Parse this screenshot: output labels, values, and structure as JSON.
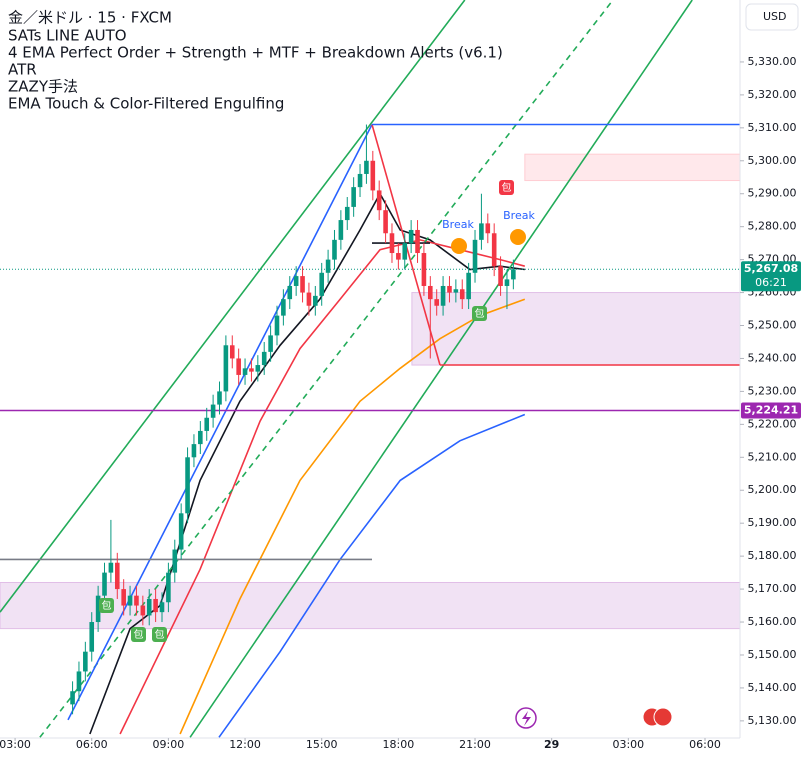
{
  "chart_data": {
    "type": "candlestick",
    "title": "金／米ドル · 15 · FXCM",
    "indicators": [
      "SATs LINE AUTO",
      "4 EMA Perfect Order + Strength + MTF + Breakdown Alerts (v6.1)",
      "ATR",
      "ZAZY手法",
      "EMA Touch & Color-Filtered Engulfing"
    ],
    "currency": "USD",
    "countdown": "06:21",
    "annotations": {
      "break": "Break",
      "engulf": "包"
    },
    "up_color": "#089981",
    "down_color": "#f23645",
    "xlim": [
      2.41,
      31.37
    ],
    "xticks": [
      {
        "value": 3,
        "label": "03:00"
      },
      {
        "value": 6,
        "label": "06:00"
      },
      {
        "value": 9,
        "label": "09:00"
      },
      {
        "value": 12,
        "label": "12:00"
      },
      {
        "value": 15,
        "label": "15:00"
      },
      {
        "value": 18,
        "label": "18:00"
      },
      {
        "value": 21,
        "label": "21:00"
      },
      {
        "value": 24,
        "label": "29"
      },
      {
        "value": 27,
        "label": "03:00"
      },
      {
        "value": 30,
        "label": "06:00"
      }
    ],
    "ylim": [
      5124.8,
      5348.8
    ],
    "yticks": [
      {
        "value": 5130,
        "label": "5,130.00"
      },
      {
        "value": 5140,
        "label": "5,140.00"
      },
      {
        "value": 5150,
        "label": "5,150.00"
      },
      {
        "value": 5160,
        "label": "5,160.00"
      },
      {
        "value": 5170,
        "label": "5,170.00"
      },
      {
        "value": 5180,
        "label": "5,180.00"
      },
      {
        "value": 5190,
        "label": "5,190.00"
      },
      {
        "value": 5200,
        "label": "5,200.00"
      },
      {
        "value": 5210,
        "label": "5,210.00"
      },
      {
        "value": 5220,
        "label": "5,220.00"
      },
      {
        "value": 5230,
        "label": "5,230.00"
      },
      {
        "value": 5240,
        "label": "5,240.00"
      },
      {
        "value": 5250,
        "label": "5,250.00"
      },
      {
        "value": 5260,
        "label": "5,260.00"
      },
      {
        "value": 5270,
        "label": "5,270.00"
      },
      {
        "value": 5280,
        "label": "5,280.00"
      },
      {
        "value": 5290,
        "label": "5,290.00"
      },
      {
        "value": 5300,
        "label": "5,300.00"
      },
      {
        "value": 5310,
        "label": "5,310.00"
      },
      {
        "value": 5320,
        "label": "5,320.00"
      },
      {
        "value": 5330,
        "label": "5,330.00"
      }
    ],
    "x": [
      5.25,
      5.5,
      5.75,
      6,
      6.25,
      6.5,
      6.75,
      7,
      7.25,
      7.5,
      7.75,
      8,
      8.25,
      8.5,
      8.75,
      9,
      9.25,
      9.5,
      9.75,
      10,
      10.25,
      10.5,
      10.75,
      11,
      11.25,
      11.5,
      11.75,
      12,
      12.25,
      12.5,
      12.75,
      13,
      13.25,
      13.5,
      13.75,
      14,
      14.25,
      14.5,
      14.75,
      15,
      15.25,
      15.5,
      15.75,
      16,
      16.25,
      16.5,
      16.75,
      17,
      17.25,
      17.5,
      17.75,
      18,
      18.25,
      18.5,
      18.75,
      19,
      19.25,
      19.5,
      19.75,
      20,
      20.25,
      20.5,
      20.75,
      21,
      21.25,
      21.5,
      21.75,
      22,
      22.25,
      22.5
    ],
    "candles": [
      [
        5135,
        5142,
        5132,
        5139
      ],
      [
        5139,
        5148,
        5136,
        5145
      ],
      [
        5145,
        5154,
        5142,
        5151
      ],
      [
        5151,
        5163,
        5148,
        5160
      ],
      [
        5160,
        5171,
        5157,
        5168
      ],
      [
        5168,
        5178,
        5165,
        5175
      ],
      [
        5175,
        5191,
        5172,
        5178
      ],
      [
        5178,
        5181,
        5167,
        5170
      ],
      [
        5170,
        5173,
        5162,
        5165
      ],
      [
        5165,
        5171,
        5162,
        5168
      ],
      [
        5168,
        5171,
        5162,
        5165
      ],
      [
        5165,
        5168,
        5159,
        5162
      ],
      [
        5162,
        5170,
        5159,
        5167
      ],
      [
        5167,
        5170,
        5160,
        5163
      ],
      [
        5163,
        5169,
        5160,
        5166
      ],
      [
        5166,
        5178,
        5163,
        5175
      ],
      [
        5175,
        5185,
        5172,
        5182
      ],
      [
        5182,
        5196,
        5179,
        5193
      ],
      [
        5193,
        5213,
        5190,
        5210
      ],
      [
        5210,
        5217,
        5207,
        5214
      ],
      [
        5214,
        5221,
        5211,
        5218
      ],
      [
        5218,
        5225,
        5215,
        5222
      ],
      [
        5222,
        5229,
        5219,
        5226
      ],
      [
        5226,
        5233,
        5223,
        5230
      ],
      [
        5230,
        5247,
        5227,
        5244
      ],
      [
        5244,
        5247,
        5237,
        5240
      ],
      [
        5240,
        5243,
        5232,
        5235
      ],
      [
        5235,
        5240,
        5232,
        5237
      ],
      [
        5237,
        5240,
        5233,
        5236
      ],
      [
        5236,
        5241,
        5233,
        5238
      ],
      [
        5238,
        5245,
        5235,
        5242
      ],
      [
        5242,
        5250,
        5239,
        5247
      ],
      [
        5247,
        5256,
        5244,
        5253
      ],
      [
        5253,
        5261,
        5250,
        5258
      ],
      [
        5258,
        5265,
        5255,
        5262
      ],
      [
        5262,
        5268,
        5259,
        5265
      ],
      [
        5265,
        5268,
        5257,
        5260
      ],
      [
        5260,
        5263,
        5253,
        5256
      ],
      [
        5256,
        5262,
        5253,
        5259
      ],
      [
        5259,
        5269,
        5256,
        5266
      ],
      [
        5266,
        5273,
        5263,
        5270
      ],
      [
        5270,
        5279,
        5267,
        5276
      ],
      [
        5276,
        5285,
        5273,
        5282
      ],
      [
        5282,
        5289,
        5279,
        5286
      ],
      [
        5286,
        5295,
        5283,
        5292
      ],
      [
        5292,
        5299,
        5289,
        5296
      ],
      [
        5296,
        5311,
        5293,
        5300
      ],
      [
        5300,
        5303,
        5288,
        5291
      ],
      [
        5291,
        5294,
        5282,
        5285
      ],
      [
        5285,
        5288,
        5275,
        5278
      ],
      [
        5278,
        5281,
        5269,
        5272
      ],
      [
        5272,
        5275,
        5267,
        5270
      ],
      [
        5270,
        5278,
        5267,
        5275
      ],
      [
        5275,
        5282,
        5272,
        5279
      ],
      [
        5279,
        5282,
        5269,
        5272
      ],
      [
        5272,
        5275,
        5259,
        5262
      ],
      [
        5262,
        5265,
        5240,
        5258
      ],
      [
        5258,
        5261,
        5253,
        5256
      ],
      [
        5256,
        5265,
        5253,
        5262
      ],
      [
        5262,
        5265,
        5257,
        5260
      ],
      [
        5260,
        5264,
        5257,
        5261
      ],
      [
        5261,
        5264,
        5255,
        5258
      ],
      [
        5258,
        5269,
        5255,
        5266
      ],
      [
        5266,
        5279,
        5263,
        5276
      ],
      [
        5276,
        5290,
        5273,
        5281
      ],
      [
        5281,
        5284,
        5275,
        5278
      ],
      [
        5278,
        5281,
        5265,
        5268
      ],
      [
        5268,
        5271,
        5259,
        5262
      ],
      [
        5262,
        5267,
        5255,
        5264
      ],
      [
        5264,
        5270,
        5261,
        5267.08
      ]
    ],
    "zones": [
      {
        "color": "#e1bee7",
        "x": [
          2.41,
          31.37
        ],
        "range": [
          5158,
          5172
        ]
      },
      {
        "color": "#e1bee7",
        "x": [
          18.53,
          31.37
        ],
        "range": [
          5238,
          5260
        ]
      },
      {
        "color": "#ffcdd2",
        "x": [
          22.95,
          31.37
        ],
        "range": [
          5294,
          5302
        ]
      }
    ],
    "overlays": [
      {
        "color": "#131722",
        "x": [
          5.93,
          7.5,
          8.67,
          10.24,
          11.8,
          13.37,
          14.93,
          16.5,
          17.28,
          18.07,
          19.24,
          20.8,
          21.98,
          22.95
        ],
        "values": [
          5126,
          5158,
          5165,
          5203,
          5227,
          5244,
          5258,
          5279,
          5290,
          5279,
          5276,
          5267,
          5268,
          5267
        ]
      },
      {
        "color": "#f23645",
        "x": [
          7.11,
          10.24,
          12.59,
          14.15,
          15.72,
          17.28,
          18.85,
          20.41,
          21.98,
          22.95
        ],
        "values": [
          5126,
          5176,
          5221,
          5243,
          5258,
          5273,
          5276,
          5273,
          5270,
          5268
        ]
      },
      {
        "color": "#ff9800",
        "x": [
          9.46,
          11.8,
          14.15,
          16.5,
          18.07,
          19.63,
          21.2,
          22.95
        ],
        "values": [
          5126,
          5167,
          5203,
          5227,
          5237,
          5246,
          5253,
          5258
        ]
      },
      {
        "color": "#2962ff",
        "x": [
          10.98,
          13.37,
          15.72,
          18.07,
          20.41,
          22.95
        ],
        "values": [
          5125,
          5151,
          5179,
          5203,
          5215,
          5223
        ]
      },
      {
        "color": "#22ab59",
        "x": [
          2.41,
          20.6
        ],
        "values": [
          5163,
          5348.8
        ]
      },
      {
        "color": "#22ab59",
        "x": [
          9.85,
          29.5
        ],
        "values": [
          5125,
          5348.8
        ]
      },
      {
        "color": "#22ab59",
        "x": [
          3.97,
          26.4
        ],
        "values": [
          5125,
          5348.8
        ],
        "dash": true
      },
      {
        "color": "#2962ff",
        "x": [
          5.07,
          16.97
        ],
        "values": [
          5130.3,
          5311
        ]
      },
      {
        "color": "#f23645",
        "x": [
          16.97,
          19.63
        ],
        "values": [
          5311,
          5238
        ]
      },
      {
        "color": "#2962ff",
        "x": [
          16.97,
          31.37
        ],
        "values": [
          5311,
          5311
        ]
      },
      {
        "color": "#f23645",
        "x": [
          19.63,
          31.37
        ],
        "values": [
          5238,
          5238
        ]
      },
      {
        "color": "#9c27b0",
        "x": [
          2.41,
          31.37
        ],
        "values": [
          5224.21,
          5224.21
        ]
      },
      {
        "color": "#787b86",
        "x": [
          2.41,
          16.97
        ],
        "values": [
          5179,
          5179
        ]
      },
      {
        "color": "#131722",
        "x": [
          16.97,
          19.24
        ],
        "values": [
          5275,
          5275
        ]
      }
    ],
    "price_labels": [
      {
        "value": 5267.08,
        "label": "5,267.08",
        "color": "#089981"
      },
      {
        "value": 5224.21,
        "label": "5,224.21",
        "color": "#9c27b0"
      }
    ]
  }
}
